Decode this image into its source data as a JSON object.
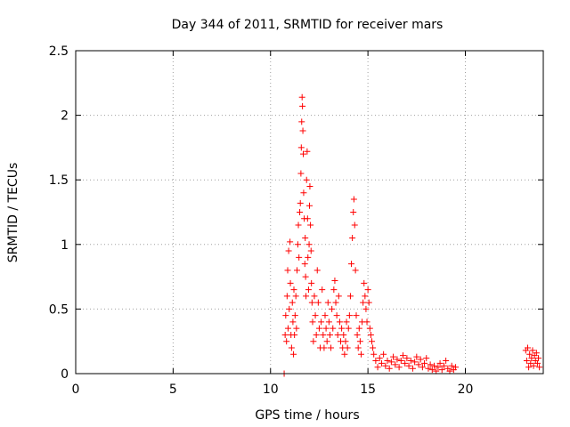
{
  "chart_data": {
    "type": "scatter",
    "title": "Day 344 of 2011, SRMTID for receiver mars",
    "xlabel": "GPS time / hours",
    "ylabel": "SRMTID / TECUs",
    "xlim": [
      0,
      24
    ],
    "ylim": [
      0,
      2.5
    ],
    "xticks": [
      0,
      5,
      10,
      15,
      20
    ],
    "yticks": [
      0,
      0.5,
      1,
      1.5,
      2,
      2.5
    ],
    "xtick_labels": [
      "0",
      "5",
      "10",
      "15",
      "20"
    ],
    "ytick_labels": [
      "0",
      "0.5",
      "1",
      "1.5",
      "2",
      "2.5"
    ],
    "grid": true,
    "marker": "+",
    "series": [
      {
        "name": "SRMTID",
        "color": "#ff0000",
        "points": [
          [
            10.7,
            0.0
          ],
          [
            10.75,
            0.3
          ],
          [
            10.78,
            0.45
          ],
          [
            10.82,
            0.25
          ],
          [
            10.85,
            0.6
          ],
          [
            10.88,
            0.8
          ],
          [
            10.9,
            0.35
          ],
          [
            10.93,
            0.95
          ],
          [
            10.96,
            0.5
          ],
          [
            11.0,
            1.02
          ],
          [
            11.02,
            0.7
          ],
          [
            11.05,
            0.3
          ],
          [
            11.08,
            0.2
          ],
          [
            11.12,
            0.55
          ],
          [
            11.15,
            0.4
          ],
          [
            11.18,
            0.15
          ],
          [
            11.2,
            0.65
          ],
          [
            11.23,
            0.3
          ],
          [
            11.26,
            0.45
          ],
          [
            11.3,
            0.6
          ],
          [
            11.33,
            0.35
          ],
          [
            11.36,
            0.8
          ],
          [
            11.4,
            1.0
          ],
          [
            11.43,
            1.15
          ],
          [
            11.46,
            0.9
          ],
          [
            11.5,
            1.25
          ],
          [
            11.53,
            1.32
          ],
          [
            11.56,
            1.55
          ],
          [
            11.58,
            1.75
          ],
          [
            11.6,
            1.95
          ],
          [
            11.62,
            2.14
          ],
          [
            11.64,
            2.07
          ],
          [
            11.66,
            1.88
          ],
          [
            11.68,
            1.7
          ],
          [
            11.7,
            1.4
          ],
          [
            11.73,
            1.2
          ],
          [
            11.76,
            0.85
          ],
          [
            11.78,
            1.05
          ],
          [
            11.8,
            0.75
          ],
          [
            11.82,
            0.6
          ],
          [
            11.85,
            1.5
          ],
          [
            11.88,
            1.72
          ],
          [
            11.9,
            1.2
          ],
          [
            11.92,
            0.9
          ],
          [
            11.95,
            0.65
          ],
          [
            11.98,
            1.0
          ],
          [
            12.0,
            1.3
          ],
          [
            12.02,
            1.45
          ],
          [
            12.05,
            1.15
          ],
          [
            12.08,
            0.95
          ],
          [
            12.1,
            0.7
          ],
          [
            12.13,
            0.55
          ],
          [
            12.16,
            0.4
          ],
          [
            12.2,
            0.25
          ],
          [
            12.25,
            0.6
          ],
          [
            12.3,
            0.45
          ],
          [
            12.35,
            0.3
          ],
          [
            12.4,
            0.8
          ],
          [
            12.45,
            0.55
          ],
          [
            12.5,
            0.35
          ],
          [
            12.55,
            0.2
          ],
          [
            12.6,
            0.4
          ],
          [
            12.65,
            0.65
          ],
          [
            12.7,
            0.3
          ],
          [
            12.75,
            0.2
          ],
          [
            12.8,
            0.45
          ],
          [
            12.85,
            0.35
          ],
          [
            12.9,
            0.25
          ],
          [
            12.95,
            0.55
          ],
          [
            13.0,
            0.4
          ],
          [
            13.05,
            0.3
          ],
          [
            13.1,
            0.2
          ],
          [
            13.15,
            0.5
          ],
          [
            13.2,
            0.35
          ],
          [
            13.25,
            0.65
          ],
          [
            13.3,
            0.72
          ],
          [
            13.35,
            0.55
          ],
          [
            13.4,
            0.45
          ],
          [
            13.45,
            0.3
          ],
          [
            13.5,
            0.6
          ],
          [
            13.55,
            0.4
          ],
          [
            13.6,
            0.25
          ],
          [
            13.65,
            0.35
          ],
          [
            13.7,
            0.2
          ],
          [
            13.75,
            0.3
          ],
          [
            13.8,
            0.15
          ],
          [
            13.85,
            0.25
          ],
          [
            13.9,
            0.4
          ],
          [
            13.95,
            0.2
          ],
          [
            14.0,
            0.35
          ],
          [
            14.05,
            0.45
          ],
          [
            14.1,
            0.6
          ],
          [
            14.15,
            0.85
          ],
          [
            14.2,
            1.05
          ],
          [
            14.25,
            1.25
          ],
          [
            14.28,
            1.35
          ],
          [
            14.32,
            1.15
          ],
          [
            14.36,
            0.8
          ],
          [
            14.4,
            0.45
          ],
          [
            14.45,
            0.3
          ],
          [
            14.5,
            0.2
          ],
          [
            14.55,
            0.35
          ],
          [
            14.6,
            0.25
          ],
          [
            14.65,
            0.15
          ],
          [
            14.7,
            0.4
          ],
          [
            14.75,
            0.55
          ],
          [
            14.8,
            0.7
          ],
          [
            14.85,
            0.6
          ],
          [
            14.9,
            0.5
          ],
          [
            14.95,
            0.4
          ],
          [
            15.0,
            0.65
          ],
          [
            15.05,
            0.55
          ],
          [
            15.1,
            0.35
          ],
          [
            15.15,
            0.3
          ],
          [
            15.2,
            0.25
          ],
          [
            15.25,
            0.2
          ],
          [
            15.3,
            0.15
          ],
          [
            15.4,
            0.1
          ],
          [
            15.5,
            0.05
          ],
          [
            15.6,
            0.12
          ],
          [
            15.7,
            0.08
          ],
          [
            15.8,
            0.15
          ],
          [
            15.9,
            0.06
          ],
          [
            16.0,
            0.1
          ],
          [
            16.1,
            0.04
          ],
          [
            16.2,
            0.09
          ],
          [
            16.3,
            0.13
          ],
          [
            16.4,
            0.07
          ],
          [
            16.5,
            0.11
          ],
          [
            16.6,
            0.05
          ],
          [
            16.7,
            0.1
          ],
          [
            16.8,
            0.14
          ],
          [
            16.9,
            0.08
          ],
          [
            17.0,
            0.12
          ],
          [
            17.1,
            0.06
          ],
          [
            17.2,
            0.1
          ],
          [
            17.3,
            0.04
          ],
          [
            17.4,
            0.09
          ],
          [
            17.5,
            0.13
          ],
          [
            17.6,
            0.07
          ],
          [
            17.7,
            0.11
          ],
          [
            17.8,
            0.05
          ],
          [
            17.9,
            0.08
          ],
          [
            18.0,
            0.12
          ],
          [
            18.1,
            0.04
          ],
          [
            18.2,
            0.07
          ],
          [
            18.3,
            0.03
          ],
          [
            18.4,
            0.06
          ],
          [
            18.5,
            0.02
          ],
          [
            18.6,
            0.05
          ],
          [
            18.7,
            0.08
          ],
          [
            18.8,
            0.03
          ],
          [
            18.9,
            0.06
          ],
          [
            19.0,
            0.1
          ],
          [
            19.1,
            0.04
          ],
          [
            19.2,
            0.02
          ],
          [
            19.3,
            0.06
          ],
          [
            19.4,
            0.03
          ],
          [
            19.5,
            0.05
          ],
          [
            23.1,
            0.18
          ],
          [
            23.15,
            0.1
          ],
          [
            23.2,
            0.2
          ],
          [
            23.25,
            0.05
          ],
          [
            23.3,
            0.15
          ],
          [
            23.35,
            0.08
          ],
          [
            23.4,
            0.12
          ],
          [
            23.45,
            0.18
          ],
          [
            23.5,
            0.06
          ],
          [
            23.55,
            0.14
          ],
          [
            23.6,
            0.1
          ],
          [
            23.65,
            0.16
          ],
          [
            23.7,
            0.08
          ],
          [
            23.75,
            0.12
          ],
          [
            23.8,
            0.05
          ]
        ]
      }
    ]
  }
}
